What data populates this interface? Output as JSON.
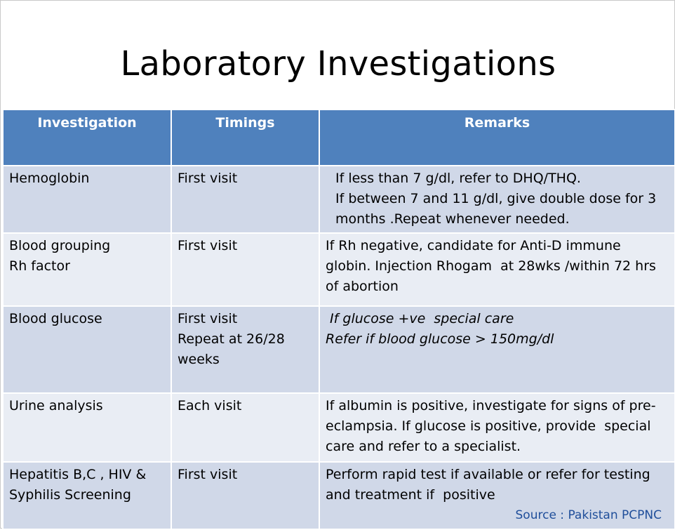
{
  "title": "Laboratory Investigations",
  "table": {
    "headers": [
      "Investigation",
      "Timings",
      "Remarks"
    ],
    "rows": [
      {
        "investigation": [
          "Hemoglobin"
        ],
        "timings": [
          "First visit"
        ],
        "remarks": [
          "If less than 7 g/dl, refer to DHQ/THQ.",
          "If between 7 and 11 g/dl, give double dose for 3 months .Repeat whenever needed."
        ]
      },
      {
        "investigation": [
          "Blood grouping",
          "Rh factor"
        ],
        "timings": [
          "First visit"
        ],
        "remarks": [
          "If Rh negative, candidate for Anti-D immune globin. Injection Rhogam  at 28wks /within 72 hrs of abortion"
        ]
      },
      {
        "investigation": [
          "Blood glucose"
        ],
        "timings": [
          "First visit",
          "Repeat at 26/28 weeks"
        ],
        "remarks": [
          " If glucose +ve  special care",
          "Refer if blood glucose > 150mg/dl"
        ]
      },
      {
        "investigation": [
          "Urine analysis"
        ],
        "timings": [
          "Each visit"
        ],
        "remarks": [
          "If albumin is positive, investigate for signs of pre-eclampsia. If glucose is positive, provide  special care and refer to a specialist."
        ]
      },
      {
        "investigation": [
          "Hepatitis B,C , HIV & Syphilis Screening"
        ],
        "timings": [
          "First visit"
        ],
        "remarks": [
          "Perform rapid test if available or refer for testing and treatment if  positive"
        ]
      }
    ]
  },
  "source": "Source : Pakistan PCPNC",
  "colors": {
    "header": "#4f81bd",
    "row_dark": "#d0d8e8",
    "row_light": "#e9edf4",
    "source_text": "#1f4e9a"
  }
}
